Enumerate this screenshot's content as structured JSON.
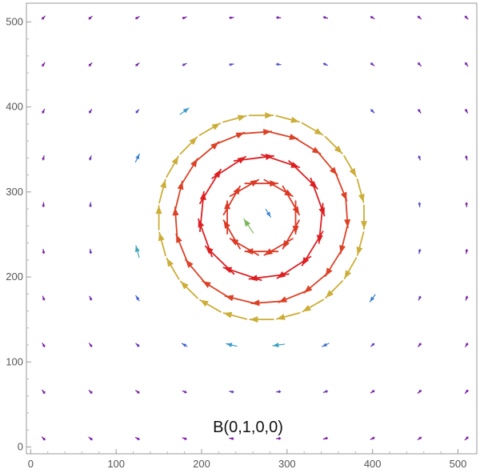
{
  "chart_data": {
    "type": "vector-field",
    "title": "",
    "xlabel": "",
    "ylabel": "",
    "annotation": "B(0,1,0,0)",
    "xlim": [
      -5,
      522
    ],
    "ylim": [
      -8,
      522
    ],
    "x_ticks": [
      0,
      100,
      200,
      300,
      400,
      500
    ],
    "y_ticks": [
      0,
      100,
      200,
      300,
      400,
      500
    ],
    "grid": false,
    "field": {
      "vortex_center": [
        270,
        270
      ],
      "peak_radius": 95,
      "rotation": "clockwise",
      "sample_spacing": 55,
      "sample_offset": 15,
      "inner_rings": [
        {
          "radius": 40,
          "count": 12
        },
        {
          "radius": 70,
          "count": 14
        },
        {
          "radius": 100,
          "count": 20
        },
        {
          "radius": 120,
          "count": 24
        }
      ],
      "color_scale": [
        "#7a1fa2",
        "#3d5bd6",
        "#3aa0c8",
        "#7fb85a",
        "#c9b43a",
        "#d98a2b",
        "#dd1f22"
      ]
    }
  }
}
